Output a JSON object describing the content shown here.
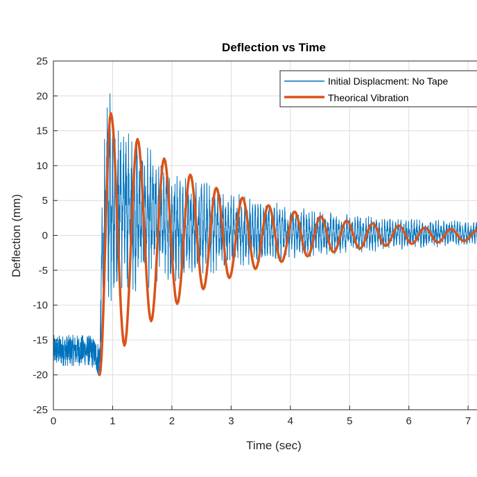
{
  "chart_data": {
    "type": "line",
    "title": "Deflection vs Time",
    "xlabel": "Time (sec)",
    "ylabel": "Deflection (mm)",
    "xlim": [
      0,
      7.2
    ],
    "ylim": [
      -25,
      25
    ],
    "xticks": [
      0,
      1,
      2,
      3,
      4,
      5,
      6,
      7
    ],
    "yticks": [
      -25,
      -20,
      -15,
      -10,
      -5,
      0,
      5,
      10,
      15,
      20,
      25
    ],
    "grid": true,
    "legend_position": "top-right",
    "series": [
      {
        "name": "Initial Displacment: No Tape",
        "color": "#0072BD",
        "line_width": "thin",
        "description_points": {
          "x": [
            0.0,
            0.1,
            0.2,
            0.3,
            0.4,
            0.5,
            0.6,
            0.7,
            0.78,
            0.82,
            0.86,
            0.9,
            1.0,
            1.2,
            1.5,
            2.0,
            2.5,
            3.0,
            3.5,
            4.0,
            4.5,
            5.0,
            5.5,
            6.0,
            6.5,
            7.0,
            7.2
          ],
          "upper_envelope": [
            -14,
            -14,
            -14,
            -14,
            -14,
            -14,
            -14,
            -14.5,
            -15,
            5,
            15,
            21.5,
            20,
            17,
            14,
            10,
            8,
            6.5,
            5.2,
            4.3,
            3.6,
            3.1,
            2.8,
            2.5,
            2.3,
            2.1,
            2.0
          ],
          "lower_envelope": [
            -19,
            -19,
            -19,
            -19,
            -19,
            -19,
            -19,
            -19.5,
            -21,
            -15,
            -12,
            -11,
            -10,
            -9,
            -8,
            -7,
            -6,
            -5,
            -4,
            -3.5,
            -3,
            -2.6,
            -2.3,
            -2.0,
            -1.8,
            -1.6,
            -1.5
          ]
        }
      },
      {
        "name": "Theorical Vibration",
        "color": "#D95319",
        "line_width": "thick",
        "peaks": {
          "x": [
            0.78,
            0.97,
            1.2,
            1.42,
            1.65,
            1.87,
            2.09,
            2.31,
            2.53,
            2.75,
            2.97,
            3.19,
            3.41,
            3.63,
            3.85,
            4.07,
            4.29,
            4.51,
            4.73,
            4.95,
            5.17,
            5.39,
            5.61,
            5.83,
            6.05,
            6.27,
            6.49,
            6.71,
            6.93,
            7.15
          ],
          "y": [
            -20,
            17.5,
            -15.8,
            13.8,
            -12.3,
            11,
            -9.8,
            8.7,
            -7.7,
            6.8,
            -6.1,
            5.4,
            -4.8,
            4.3,
            -3.8,
            3.4,
            -3.0,
            2.7,
            -2.4,
            2.1,
            -1.9,
            1.7,
            -1.5,
            1.4,
            -1.2,
            1.1,
            -1.0,
            0.9,
            -0.8,
            0.7
          ]
        }
      }
    ]
  }
}
